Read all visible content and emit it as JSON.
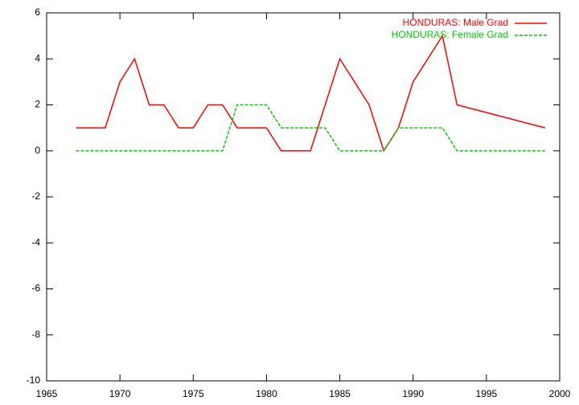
{
  "chart_data": {
    "type": "line",
    "series": [
      {
        "name": "HONDURAS: Male Grad",
        "color": "#ff0000",
        "dash": false,
        "x": [
          1967,
          1969,
          1970,
          1971,
          1972,
          1973,
          1974,
          1975,
          1976,
          1977,
          1978,
          1980,
          1981,
          1983,
          1985,
          1987,
          1988,
          1989,
          1990,
          1992,
          1993,
          1999
        ],
        "values": [
          1,
          1,
          3,
          4,
          2,
          2,
          1,
          1,
          2,
          2,
          1,
          1,
          0,
          0,
          4,
          2,
          0,
          1,
          3,
          5,
          2,
          1
        ]
      },
      {
        "name": "HONDURAS: Female Grad",
        "color": "#00cc00",
        "dash": true,
        "x": [
          1967,
          1977,
          1978,
          1980,
          1981,
          1984,
          1985,
          1988,
          1989,
          1992,
          1993,
          1999
        ],
        "values": [
          0,
          0,
          2,
          2,
          1,
          1,
          0,
          0,
          1,
          1,
          0,
          0
        ]
      }
    ],
    "xlim": [
      1965,
      2000
    ],
    "xticks": [
      1965,
      1970,
      1975,
      1980,
      1985,
      1990,
      1995,
      2000
    ],
    "ylim": [
      -10,
      6
    ],
    "yticks": [
      -10,
      -8,
      -6,
      -4,
      -2,
      0,
      2,
      4,
      6
    ],
    "legend": "top-right"
  }
}
